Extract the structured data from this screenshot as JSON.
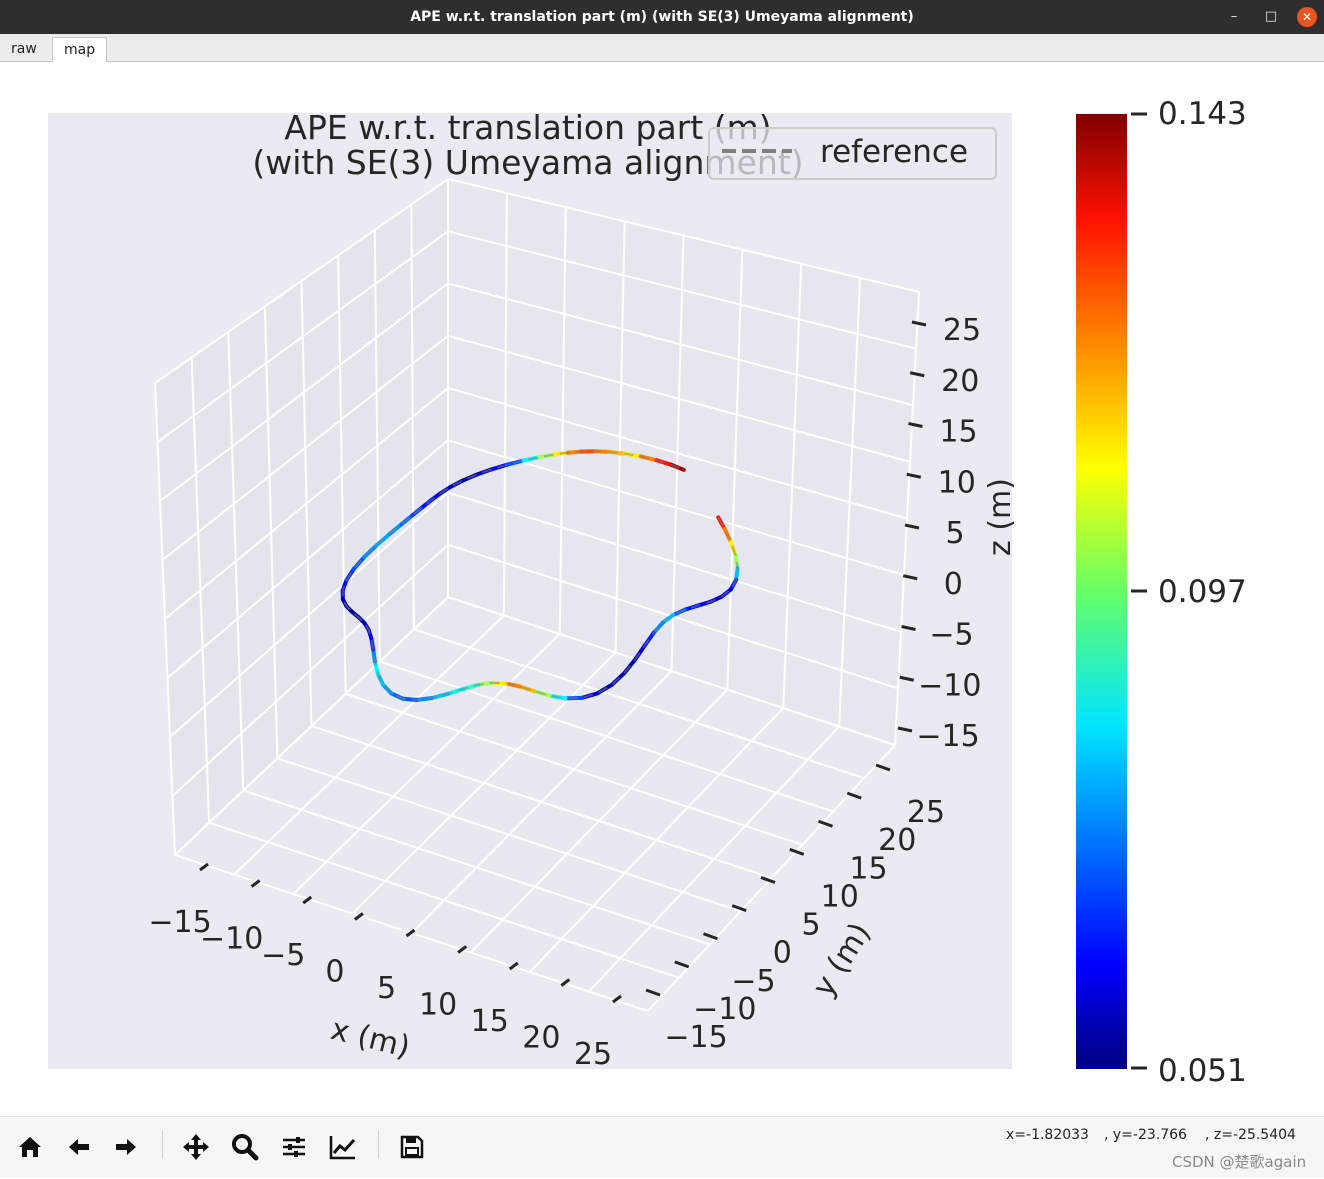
{
  "window": {
    "title": "APE w.r.t. translation part (m) (with SE(3) Umeyama alignment)",
    "min_glyph": "–",
    "max_glyph": "□",
    "close_glyph": "✕"
  },
  "tabs": [
    {
      "label": "raw",
      "active": false
    },
    {
      "label": "map",
      "active": true
    }
  ],
  "chart_data": {
    "type": "line",
    "projection": "3d",
    "title_line1": "APE w.r.t. translation part (m)",
    "title_line2": "(with SE(3) Umeyama alignment)",
    "legend": {
      "label": "reference",
      "style": "dashed gray",
      "position": "upper-right"
    },
    "xlabel": "x (m)",
    "ylabel": "y (m)",
    "zlabel": "z (m)",
    "xticks": [
      "−15",
      "−10",
      "−5",
      "0",
      "5",
      "10",
      "15",
      "20",
      "25"
    ],
    "yticks": [
      "−15",
      "−10",
      "−5",
      "0",
      "5",
      "10",
      "15",
      "20",
      "25"
    ],
    "zticks": [
      "25",
      "20",
      "15",
      "10",
      "5",
      "0",
      "−5",
      "−10",
      "−15"
    ],
    "xlim": [
      -15,
      25
    ],
    "ylim": [
      -15,
      25
    ],
    "zlim": [
      -15,
      25
    ],
    "grid": true,
    "colormap": "jet",
    "colorbar": {
      "min": 0.051,
      "mid": 0.097,
      "max": 0.143,
      "labels": [
        "0.143",
        "0.097",
        "0.051"
      ]
    },
    "series": [
      {
        "name": "reference",
        "note": "wavy closed loop trajectory, error-colored along path",
        "point_error": [
          0.13,
          0.12,
          0.11,
          0.1,
          0.08,
          0.065,
          0.06,
          0.058,
          0.06,
          0.064,
          0.07,
          0.08,
          0.075,
          0.065,
          0.058,
          0.055,
          0.054,
          0.056,
          0.06,
          0.07,
          0.085,
          0.1,
          0.115,
          0.12,
          0.11,
          0.1,
          0.09,
          0.085,
          0.08,
          0.075,
          0.07,
          0.072,
          0.076,
          0.08,
          0.085,
          0.075,
          0.065,
          0.06,
          0.057,
          0.055,
          0.054,
          0.053,
          0.055,
          0.058,
          0.062,
          0.066,
          0.07,
          0.075,
          0.078,
          0.076,
          0.072,
          0.068,
          0.064,
          0.06,
          0.058,
          0.056,
          0.055,
          0.057,
          0.062,
          0.07,
          0.085,
          0.1,
          0.11,
          0.12,
          0.125,
          0.12,
          0.115,
          0.11,
          0.12,
          0.13,
          0.14,
          0.138
        ]
      }
    ]
  },
  "toolbar": {
    "buttons": [
      "home-icon",
      "back-icon",
      "forward-icon",
      "pan-icon",
      "zoom-icon",
      "subplots-icon",
      "customize-icon",
      "save-icon"
    ],
    "coord_x": "x=-1.82033",
    "coord_y": ", y=-23.766",
    "coord_z": ", z=-25.5404"
  },
  "watermark": "CSDN @楚歌again"
}
